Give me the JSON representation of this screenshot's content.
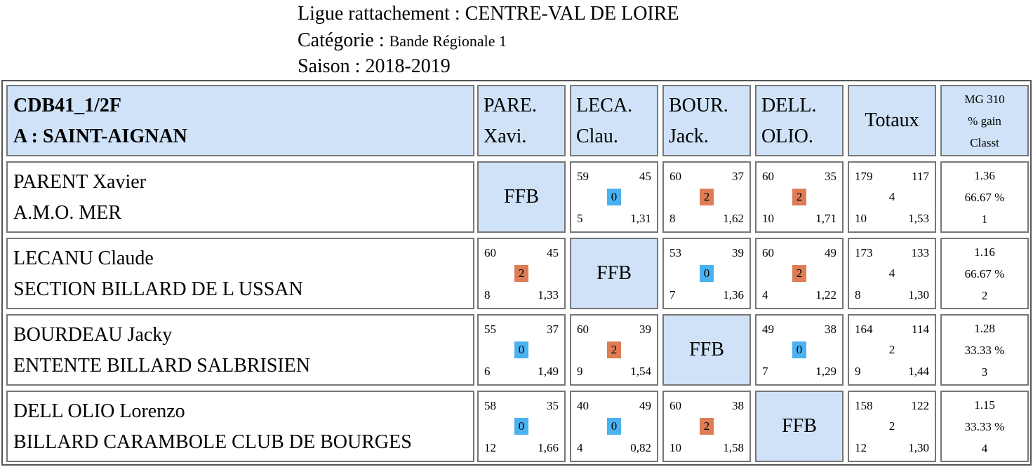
{
  "header": {
    "ligue": "Ligue rattachement : CENTRE-VAL DE LOIRE",
    "categorie_label": "Catégorie : ",
    "categorie_value": "Bande Régionale 1",
    "saison": "Saison : 2018-2019"
  },
  "table": {
    "title_line1": "CDB41_1/2F",
    "title_line2": "A : SAINT-AIGNAN",
    "columns": [
      {
        "line1": "PARE.",
        "line2": "Xavi."
      },
      {
        "line1": "LECA.",
        "line2": "Clau."
      },
      {
        "line1": "BOUR.",
        "line2": "Jack."
      },
      {
        "line1": "DELL.",
        "line2": "OLIO."
      }
    ],
    "totals_label": "Totaux",
    "mg_label": "MG 310",
    "gain_label": "% gain",
    "classt_label": "Classt",
    "ffb_label": "FFB",
    "colors": {
      "badge_0": "#4ab2f1",
      "badge_2": "#de7c55",
      "header_bg": "#cfe2f7"
    },
    "rows": [
      {
        "name": "PARENT Xavier",
        "club": "A.M.O. MER",
        "cells": [
          null,
          {
            "tl": "59",
            "tr": "45",
            "pts": "0",
            "bl": "5",
            "br": "1,31"
          },
          {
            "tl": "60",
            "tr": "37",
            "pts": "2",
            "bl": "8",
            "br": "1,62"
          },
          {
            "tl": "60",
            "tr": "35",
            "pts": "2",
            "bl": "10",
            "br": "1,71"
          }
        ],
        "total": {
          "tl": "179",
          "tr": "117",
          "pts": "4",
          "bl": "10",
          "br": "1,53"
        },
        "mg": "1.36",
        "gain": "66.67 %",
        "rank": "1"
      },
      {
        "name": "LECANU Claude",
        "club": "SECTION BILLARD DE L USSAN",
        "cells": [
          {
            "tl": "60",
            "tr": "45",
            "pts": "2",
            "bl": "8",
            "br": "1,33"
          },
          null,
          {
            "tl": "53",
            "tr": "39",
            "pts": "0",
            "bl": "7",
            "br": "1,36"
          },
          {
            "tl": "60",
            "tr": "49",
            "pts": "2",
            "bl": "4",
            "br": "1,22"
          }
        ],
        "total": {
          "tl": "173",
          "tr": "133",
          "pts": "4",
          "bl": "8",
          "br": "1,30"
        },
        "mg": "1.16",
        "gain": "66.67 %",
        "rank": "2"
      },
      {
        "name": "BOURDEAU Jacky",
        "club": "ENTENTE BILLARD SALBRISIEN",
        "cells": [
          {
            "tl": "55",
            "tr": "37",
            "pts": "0",
            "bl": "6",
            "br": "1,49"
          },
          {
            "tl": "60",
            "tr": "39",
            "pts": "2",
            "bl": "9",
            "br": "1,54"
          },
          null,
          {
            "tl": "49",
            "tr": "38",
            "pts": "0",
            "bl": "7",
            "br": "1,29"
          }
        ],
        "total": {
          "tl": "164",
          "tr": "114",
          "pts": "2",
          "bl": "9",
          "br": "1,44"
        },
        "mg": "1.28",
        "gain": "33.33 %",
        "rank": "3"
      },
      {
        "name": "DELL OLIO Lorenzo",
        "club": "BILLARD CARAMBOLE CLUB DE BOURGES",
        "cells": [
          {
            "tl": "58",
            "tr": "35",
            "pts": "0",
            "bl": "12",
            "br": "1,66"
          },
          {
            "tl": "40",
            "tr": "49",
            "pts": "0",
            "bl": "4",
            "br": "0,82"
          },
          {
            "tl": "60",
            "tr": "38",
            "pts": "2",
            "bl": "10",
            "br": "1,58"
          },
          null
        ],
        "total": {
          "tl": "158",
          "tr": "122",
          "pts": "2",
          "bl": "12",
          "br": "1,30"
        },
        "mg": "1.15",
        "gain": "33.33 %",
        "rank": "4"
      }
    ]
  }
}
